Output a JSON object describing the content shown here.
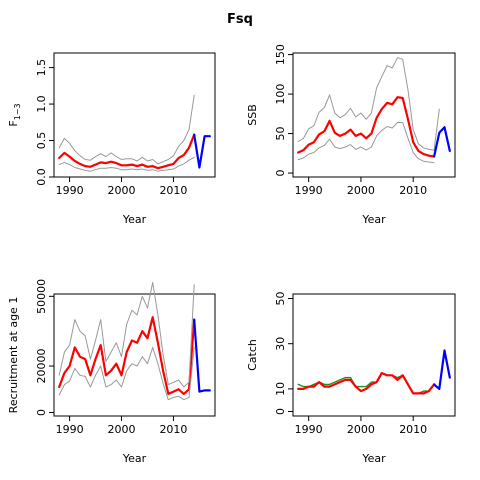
{
  "title": "Fsq",
  "chart_data": [
    {
      "type": "line",
      "xlabel": "Year",
      "ylabel": "F",
      "ylabel_sub": "1−3",
      "xlim": [
        1987,
        2018
      ],
      "ylim": [
        0,
        1.7
      ],
      "xticks": [
        1990,
        2000,
        2010
      ],
      "yticks": [
        0.0,
        0.5,
        1.0,
        1.5
      ],
      "ytick_labels": [
        "0.0",
        "0.5",
        "1.0",
        "1.5"
      ],
      "series": [
        {
          "color": "#ff0000",
          "width": 2.2,
          "x": [
            1988,
            1989,
            1990,
            1991,
            1992,
            1993,
            1994,
            1995,
            1996,
            1997,
            1998,
            1999,
            2000,
            2001,
            2002,
            2003,
            2004,
            2005,
            2006,
            2007,
            2008,
            2009,
            2010,
            2011,
            2012,
            2013,
            2014
          ],
          "values": [
            0.26,
            0.33,
            0.28,
            0.22,
            0.18,
            0.15,
            0.14,
            0.17,
            0.2,
            0.19,
            0.21,
            0.19,
            0.16,
            0.16,
            0.17,
            0.15,
            0.17,
            0.14,
            0.15,
            0.12,
            0.14,
            0.16,
            0.18,
            0.26,
            0.3,
            0.4,
            0.58
          ]
        },
        {
          "color": "#999999",
          "width": 1,
          "x": [
            1988,
            1989,
            1990,
            1991,
            1992,
            1993,
            1994,
            1995,
            1996,
            1997,
            1998,
            1999,
            2000,
            2001,
            2002,
            2003,
            2004,
            2005,
            2006,
            2007,
            2008,
            2009,
            2010,
            2011,
            2012,
            2013,
            2014
          ],
          "values": [
            0.4,
            0.53,
            0.46,
            0.36,
            0.29,
            0.24,
            0.23,
            0.28,
            0.32,
            0.28,
            0.33,
            0.28,
            0.24,
            0.25,
            0.25,
            0.22,
            0.27,
            0.22,
            0.24,
            0.18,
            0.21,
            0.24,
            0.29,
            0.42,
            0.5,
            0.65,
            1.12
          ]
        },
        {
          "color": "#999999",
          "width": 1,
          "x": [
            1988,
            1989,
            1990,
            1991,
            1992,
            1993,
            1994,
            1995,
            1996,
            1997,
            1998,
            1999,
            2000,
            2001,
            2002,
            2003,
            2004,
            2005,
            2006,
            2007,
            2008,
            2009,
            2010,
            2011,
            2012,
            2013,
            2014
          ],
          "values": [
            0.17,
            0.2,
            0.17,
            0.13,
            0.11,
            0.09,
            0.08,
            0.1,
            0.12,
            0.12,
            0.13,
            0.12,
            0.1,
            0.1,
            0.11,
            0.1,
            0.11,
            0.09,
            0.1,
            0.08,
            0.09,
            0.1,
            0.11,
            0.15,
            0.18,
            0.23,
            0.27
          ]
        },
        {
          "color": "#0000ff",
          "width": 2.2,
          "x": [
            2014,
            2015,
            2016,
            2017
          ],
          "values": [
            0.58,
            0.13,
            0.56,
            0.56
          ]
        }
      ]
    },
    {
      "type": "line",
      "xlabel": "Year",
      "ylabel": "SSB",
      "xlim": [
        1987,
        2018
      ],
      "ylim": [
        -5,
        152
      ],
      "xticks": [
        1990,
        2000,
        2010
      ],
      "yticks": [
        0,
        50,
        100,
        150
      ],
      "ytick_labels": [
        "0",
        "50",
        "100",
        "150"
      ],
      "series": [
        {
          "color": "#ff0000",
          "width": 2.2,
          "x": [
            1988,
            1989,
            1990,
            1991,
            1992,
            1993,
            1994,
            1995,
            1996,
            1997,
            1998,
            1999,
            2000,
            2001,
            2002,
            2003,
            2004,
            2005,
            2006,
            2007,
            2008,
            2009,
            2010,
            2011,
            2012,
            2013,
            2014
          ],
          "values": [
            26,
            29,
            36,
            39,
            49,
            53,
            66,
            51,
            47,
            50,
            55,
            47,
            50,
            44,
            50,
            70,
            81,
            89,
            87,
            96,
            95,
            68,
            39,
            28,
            24,
            22,
            21
          ]
        },
        {
          "color": "#999999",
          "width": 1,
          "x": [
            1988,
            1989,
            1990,
            1991,
            1992,
            1993,
            1994,
            1995,
            1996,
            1997,
            1998,
            1999,
            2000,
            2001,
            2002,
            2003,
            2004,
            2005,
            2006,
            2007,
            2008,
            2009,
            2010,
            2011,
            2012,
            2013,
            2014,
            2015
          ],
          "values": [
            40,
            44,
            56,
            60,
            77,
            83,
            99,
            76,
            70,
            74,
            82,
            71,
            76,
            68,
            76,
            108,
            122,
            136,
            133,
            146,
            144,
            105,
            55,
            37,
            32,
            30,
            29,
            81
          ]
        },
        {
          "color": "#999999",
          "width": 1,
          "x": [
            1988,
            1989,
            1990,
            1991,
            1992,
            1993,
            1994,
            1995,
            1996,
            1997,
            1998,
            1999,
            2000,
            2001,
            2002,
            2003,
            2004,
            2005,
            2006,
            2007,
            2008,
            2009,
            2010,
            2011,
            2012,
            2013,
            2014
          ],
          "values": [
            17,
            19,
            24,
            26,
            32,
            35,
            43,
            33,
            31,
            33,
            36,
            30,
            33,
            29,
            33,
            47,
            54,
            59,
            57,
            64,
            64,
            44,
            26,
            18,
            15,
            14,
            13
          ]
        },
        {
          "color": "#0000ff",
          "width": 2.2,
          "x": [
            2014,
            2015,
            2016,
            2017
          ],
          "values": [
            21,
            51,
            58,
            28
          ]
        }
      ]
    },
    {
      "type": "line",
      "xlabel": "Year",
      "ylabel": "Recruitment at age 1",
      "xlim": [
        1987,
        2018
      ],
      "ylim": [
        -1500,
        51000
      ],
      "xticks": [
        1990,
        2000,
        2010
      ],
      "yticks": [
        0,
        20000,
        50000
      ],
      "ytick_labels": [
        "0",
        "20000",
        "50000"
      ],
      "series": [
        {
          "color": "#ff0000",
          "width": 2.2,
          "x": [
            1988,
            1989,
            1990,
            1991,
            1992,
            1993,
            1994,
            1995,
            1996,
            1997,
            1998,
            1999,
            2000,
            2001,
            2002,
            2003,
            2004,
            2005,
            2006,
            2007,
            2008,
            2009,
            2010,
            2011,
            2012,
            2013,
            2014
          ],
          "values": [
            11000,
            17000,
            20000,
            28000,
            24000,
            23000,
            16000,
            23000,
            29000,
            16000,
            18000,
            21000,
            16000,
            26000,
            31000,
            30000,
            35000,
            32000,
            41000,
            30000,
            18000,
            8000,
            9000,
            10000,
            8000,
            10000,
            40000
          ]
        },
        {
          "color": "#999999",
          "width": 1,
          "x": [
            1988,
            1989,
            1990,
            1991,
            1992,
            1993,
            1994,
            1995,
            1996,
            1997,
            1998,
            1999,
            2000,
            2001,
            2002,
            2003,
            2004,
            2005,
            2006,
            2007,
            2008,
            2009,
            2010,
            2011,
            2012,
            2013,
            2014
          ],
          "values": [
            16000,
            26000,
            29000,
            40000,
            35000,
            33000,
            23000,
            31000,
            40000,
            22000,
            26000,
            30000,
            24000,
            38000,
            44000,
            42000,
            50000,
            45000,
            56000,
            42000,
            25000,
            12000,
            13000,
            14000,
            11000,
            13000,
            55000
          ]
        },
        {
          "color": "#999999",
          "width": 1,
          "x": [
            1988,
            1989,
            1990,
            1991,
            1992,
            1993,
            1994,
            1995,
            1996,
            1997,
            1998,
            1999,
            2000,
            2001,
            2002,
            2003,
            2004,
            2005,
            2006,
            2007,
            2008,
            2009,
            2010,
            2011,
            2012,
            2013,
            2014
          ],
          "values": [
            7500,
            12000,
            13500,
            19000,
            16000,
            15500,
            11000,
            16000,
            20000,
            11000,
            12000,
            14000,
            11000,
            18000,
            21000,
            20000,
            24000,
            21000,
            28000,
            21000,
            12500,
            5500,
            6500,
            7000,
            5500,
            6500,
            28000
          ]
        },
        {
          "color": "#0000ff",
          "width": 2.2,
          "x": [
            2014,
            2015,
            2016,
            2017
          ],
          "values": [
            40000,
            9000,
            9500,
            9500
          ]
        }
      ]
    },
    {
      "type": "line",
      "xlabel": "Year",
      "ylabel": "Catch",
      "xlim": [
        1987,
        2018
      ],
      "ylim": [
        -2,
        52
      ],
      "xticks": [
        1990,
        2000,
        2010
      ],
      "yticks": [
        0,
        10,
        30,
        50
      ],
      "ytick_labels": [
        "0",
        "10",
        "30",
        "50"
      ],
      "series": [
        {
          "color": "#228b22",
          "width": 1.4,
          "x": [
            1988,
            1989,
            1990,
            1991,
            1992,
            1993,
            1994,
            1995,
            1996,
            1997,
            1998,
            1999,
            2000,
            2001,
            2002,
            2003,
            2004,
            2005,
            2006,
            2007,
            2008,
            2009,
            2010,
            2011,
            2012,
            2013,
            2014
          ],
          "values": [
            12,
            11,
            11,
            12,
            13,
            12,
            12,
            13,
            14,
            15,
            15,
            11,
            11,
            11,
            13,
            13,
            17,
            16,
            16,
            15,
            16,
            12,
            8,
            8,
            9,
            9,
            12
          ]
        },
        {
          "color": "#ff0000",
          "width": 2.2,
          "x": [
            1988,
            1989,
            1990,
            1991,
            1992,
            1993,
            1994,
            1995,
            1996,
            1997,
            1998,
            1999,
            2000,
            2001,
            2002,
            2003,
            2004,
            2005,
            2006,
            2007,
            2008,
            2009,
            2010,
            2011,
            2012,
            2013,
            2014
          ],
          "values": [
            10,
            10,
            11,
            11,
            13,
            11,
            11,
            12,
            13,
            14,
            14,
            11,
            9,
            10,
            12,
            13,
            17,
            16,
            16,
            14,
            16,
            12,
            8,
            8,
            8,
            9,
            12
          ]
        },
        {
          "color": "#0000ff",
          "width": 2.2,
          "x": [
            2014,
            2015,
            2016,
            2017
          ],
          "values": [
            12,
            10,
            27,
            15
          ]
        }
      ]
    }
  ]
}
